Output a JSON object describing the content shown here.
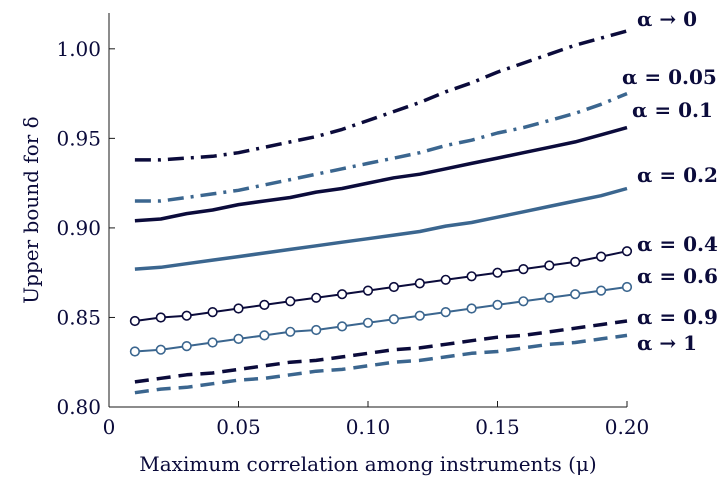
{
  "chart_data": {
    "type": "line",
    "title": "",
    "xlabel": "Maximum correlation among instruments (μ)",
    "ylabel": "Upper bound for δ",
    "xlim": [
      0,
      0.2
    ],
    "ylim": [
      0.8,
      1.02
    ],
    "x_ticks": [
      0,
      0.05,
      0.1,
      0.15,
      0.2
    ],
    "x_tick_labels": [
      "0",
      "0.05",
      "0.10",
      "0.15",
      "0.20"
    ],
    "y_ticks": [
      0.8,
      0.85,
      0.9,
      0.95,
      1.0
    ],
    "y_tick_labels": [
      "0.80",
      "0.85",
      "0.90",
      "0.95",
      "1.00"
    ],
    "grid": false,
    "legend": "inline labels at right end of each line",
    "x": [
      0.01,
      0.02,
      0.03,
      0.04,
      0.05,
      0.06,
      0.07,
      0.08,
      0.09,
      0.1,
      0.11,
      0.12,
      0.13,
      0.14,
      0.15,
      0.16,
      0.17,
      0.18,
      0.19,
      0.2
    ],
    "series": [
      {
        "name": "α → 0",
        "color": "#0b0b3b",
        "style": "dashdot",
        "marker": "none",
        "values": [
          0.938,
          0.938,
          0.939,
          0.94,
          0.942,
          0.945,
          0.948,
          0.951,
          0.955,
          0.96,
          0.965,
          0.97,
          0.976,
          0.981,
          0.987,
          0.992,
          0.997,
          1.002,
          1.006,
          1.01
        ]
      },
      {
        "name": "α = 0.05",
        "color": "#3b668f",
        "style": "dashdot",
        "marker": "none",
        "values": [
          0.915,
          0.915,
          0.917,
          0.919,
          0.921,
          0.924,
          0.927,
          0.93,
          0.933,
          0.936,
          0.939,
          0.942,
          0.946,
          0.949,
          0.953,
          0.956,
          0.96,
          0.964,
          0.969,
          0.975
        ]
      },
      {
        "name": "α = 0.1",
        "color": "#0b0b3b",
        "style": "solid",
        "marker": "none",
        "values": [
          0.904,
          0.905,
          0.908,
          0.91,
          0.913,
          0.915,
          0.917,
          0.92,
          0.922,
          0.925,
          0.928,
          0.93,
          0.933,
          0.936,
          0.939,
          0.942,
          0.945,
          0.948,
          0.952,
          0.956
        ]
      },
      {
        "name": "α = 0.2",
        "color": "#3b668f",
        "style": "solid",
        "marker": "none",
        "values": [
          0.877,
          0.878,
          0.88,
          0.882,
          0.884,
          0.886,
          0.888,
          0.89,
          0.892,
          0.894,
          0.896,
          0.898,
          0.901,
          0.903,
          0.906,
          0.909,
          0.912,
          0.915,
          0.918,
          0.922
        ]
      },
      {
        "name": "α = 0.4",
        "color": "#0b0b3b",
        "style": "solid",
        "marker": "circle",
        "values": [
          0.848,
          0.85,
          0.851,
          0.853,
          0.855,
          0.857,
          0.859,
          0.861,
          0.863,
          0.865,
          0.867,
          0.869,
          0.871,
          0.873,
          0.875,
          0.877,
          0.879,
          0.881,
          0.884,
          0.887
        ]
      },
      {
        "name": "α = 0.6",
        "color": "#3b668f",
        "style": "solid",
        "marker": "circle",
        "values": [
          0.831,
          0.832,
          0.834,
          0.836,
          0.838,
          0.84,
          0.842,
          0.843,
          0.845,
          0.847,
          0.849,
          0.851,
          0.853,
          0.855,
          0.857,
          0.859,
          0.861,
          0.863,
          0.865,
          0.867
        ]
      },
      {
        "name": "α = 0.9",
        "color": "#0b0b3b",
        "style": "dashed",
        "marker": "none",
        "values": [
          0.814,
          0.816,
          0.818,
          0.819,
          0.821,
          0.823,
          0.825,
          0.826,
          0.828,
          0.83,
          0.832,
          0.833,
          0.835,
          0.837,
          0.839,
          0.84,
          0.842,
          0.844,
          0.846,
          0.848
        ]
      },
      {
        "name": "α → 1",
        "color": "#3b668f",
        "style": "dashed",
        "marker": "none",
        "values": [
          0.808,
          0.81,
          0.811,
          0.813,
          0.815,
          0.816,
          0.818,
          0.82,
          0.821,
          0.823,
          0.825,
          0.826,
          0.828,
          0.83,
          0.831,
          0.833,
          0.835,
          0.836,
          0.838,
          0.84
        ]
      }
    ]
  }
}
